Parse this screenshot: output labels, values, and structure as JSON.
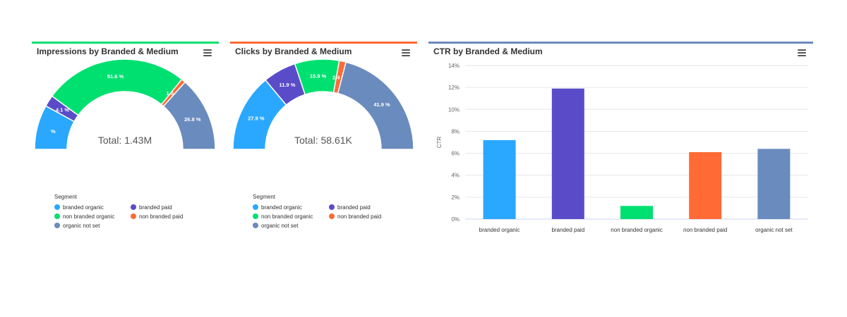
{
  "colors": {
    "branded_organic": "#2aa8ff",
    "branded_paid": "#5a4cc8",
    "non_branded_organic": "#00e070",
    "non_branded_paid": "#ff6a35",
    "organic_not_set": "#6a8bbd",
    "impressions_accent": "#00e070",
    "clicks_accent": "#ff6a35",
    "ctr_accent": "#6a8bbd"
  },
  "legend": {
    "title": "Segment",
    "items": [
      {
        "label": "branded organic",
        "color": "#2aa8ff"
      },
      {
        "label": "branded paid",
        "color": "#5a4cc8"
      },
      {
        "label": "non branded organic",
        "color": "#00e070"
      },
      {
        "label": "non branded paid",
        "color": "#ff6a35"
      },
      {
        "label": "organic not set",
        "color": "#6a8bbd"
      }
    ]
  },
  "chart_data": [
    {
      "type": "pie",
      "variant": "semi-donut",
      "title": "Impressions by Branded & Medium",
      "center_label": "Total: 1.43M",
      "slices": [
        {
          "name": "branded organic",
          "value": 16.0,
          "label": "%"
        },
        {
          "name": "branded paid",
          "value": 4.1,
          "label": "4.1 %"
        },
        {
          "name": "non branded organic",
          "value": 51.6,
          "label": "51.6 %"
        },
        {
          "name": "non branded paid",
          "value": 1.5,
          "label": "1.5 %"
        },
        {
          "name": "organic not set",
          "value": 26.8,
          "label": "26.8 %"
        }
      ]
    },
    {
      "type": "pie",
      "variant": "semi-donut",
      "title": "Clicks by Branded & Medium",
      "center_label": "Total: 58.61K",
      "slices": [
        {
          "name": "branded organic",
          "value": 27.9,
          "label": "27.9 %"
        },
        {
          "name": "branded paid",
          "value": 11.9,
          "label": "11.9 %"
        },
        {
          "name": "non branded organic",
          "value": 15.9,
          "label": "15.9 %"
        },
        {
          "name": "non branded paid",
          "value": 2.4,
          "label": "2.4 %"
        },
        {
          "name": "organic not set",
          "value": 41.9,
          "label": "41.9 %"
        }
      ]
    },
    {
      "type": "bar",
      "title": "CTR by Branded & Medium",
      "categories": [
        "branded organic",
        "branded paid",
        "non branded organic",
        "non branded paid",
        "organic not set"
      ],
      "values": [
        7.2,
        11.9,
        1.2,
        6.1,
        6.4
      ],
      "ylabel": "CTR",
      "xlabel": "",
      "ylim": [
        0,
        14
      ],
      "yticks": [
        "0%",
        "2%",
        "4%",
        "6%",
        "8%",
        "10%",
        "12%",
        "14%"
      ],
      "grid": true
    }
  ]
}
